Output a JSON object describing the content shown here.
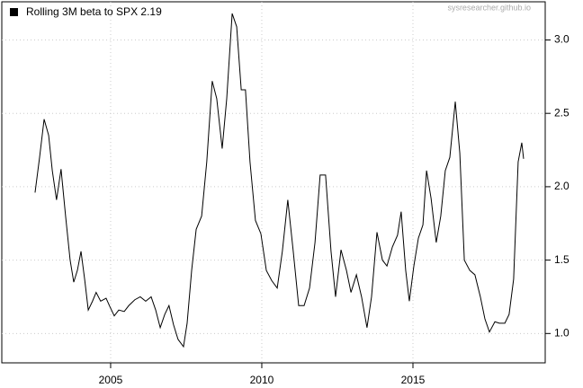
{
  "chart_data": {
    "type": "line",
    "legend_label": "Rolling 3M beta to SPX 2.19",
    "watermark": "sysresearcher.github.io",
    "series": [
      {
        "color": "#000000",
        "x": [
          2002.5,
          2002.65,
          2002.8,
          2002.95,
          2003.07,
          2003.21,
          2003.36,
          2003.51,
          2003.66,
          2003.78,
          2003.9,
          2004.02,
          2004.14,
          2004.26,
          2004.4,
          2004.52,
          2004.67,
          2004.85,
          2004.96,
          2005.12,
          2005.27,
          2005.45,
          2005.6,
          2005.8,
          2005.98,
          2006.16,
          2006.34,
          2006.49,
          2006.64,
          2006.79,
          2006.93,
          2007.08,
          2007.23,
          2007.41,
          2007.53,
          2007.68,
          2007.83,
          2008.01,
          2008.18,
          2008.36,
          2008.51,
          2008.69,
          2008.84,
          2009.02,
          2009.17,
          2009.32,
          2009.46,
          2009.61,
          2009.79,
          2009.97,
          2010.15,
          2010.33,
          2010.51,
          2010.68,
          2010.86,
          2011.04,
          2011.22,
          2011.4,
          2011.58,
          2011.76,
          2011.93,
          2012.11,
          2012.29,
          2012.44,
          2012.62,
          2012.8,
          2012.95,
          2013.13,
          2013.3,
          2013.48,
          2013.63,
          2013.81,
          2013.99,
          2014.14,
          2014.32,
          2014.49,
          2014.61,
          2014.76,
          2014.88,
          2015.03,
          2015.18,
          2015.33,
          2015.45,
          2015.6,
          2015.77,
          2015.92,
          2016.07,
          2016.22,
          2016.4,
          2016.55,
          2016.7,
          2016.88,
          2017.05,
          2017.23,
          2017.38,
          2017.53,
          2017.71,
          2017.86,
          2018.04,
          2018.18,
          2018.33,
          2018.48,
          2018.6,
          2018.66
        ],
        "values": [
          1.96,
          2.2,
          2.46,
          2.35,
          2.11,
          1.91,
          2.12,
          1.8,
          1.5,
          1.35,
          1.43,
          1.56,
          1.37,
          1.16,
          1.22,
          1.28,
          1.22,
          1.24,
          1.19,
          1.12,
          1.16,
          1.15,
          1.19,
          1.23,
          1.25,
          1.22,
          1.25,
          1.16,
          1.04,
          1.13,
          1.19,
          1.06,
          0.96,
          0.91,
          1.07,
          1.43,
          1.71,
          1.8,
          2.17,
          2.72,
          2.6,
          2.26,
          2.6,
          3.18,
          3.09,
          2.66,
          2.66,
          2.17,
          1.77,
          1.68,
          1.43,
          1.36,
          1.31,
          1.56,
          1.91,
          1.56,
          1.19,
          1.19,
          1.31,
          1.62,
          2.08,
          2.08,
          1.56,
          1.25,
          1.57,
          1.43,
          1.28,
          1.4,
          1.25,
          1.04,
          1.25,
          1.69,
          1.5,
          1.46,
          1.59,
          1.67,
          1.83,
          1.43,
          1.22,
          1.46,
          1.65,
          1.74,
          2.11,
          1.92,
          1.62,
          1.8,
          2.11,
          2.2,
          2.58,
          2.23,
          1.5,
          1.43,
          1.4,
          1.25,
          1.1,
          1.01,
          1.08,
          1.07,
          1.07,
          1.13,
          1.37,
          2.17,
          2.3,
          2.19
        ]
      }
    ],
    "xlim": [
      2001.4,
      2019.375
    ],
    "xticks": [
      2005,
      2010,
      2015
    ],
    "ylim": [
      0.8,
      3.26
    ],
    "yticks": [
      {
        "value": 1,
        "label": "1.0"
      },
      {
        "value": 1.5,
        "label": "1.5"
      },
      {
        "value": 2,
        "label": "2.0"
      },
      {
        "value": 2.5,
        "label": "2.5"
      },
      {
        "value": 3,
        "label": "3.0"
      }
    ],
    "grid": true
  }
}
